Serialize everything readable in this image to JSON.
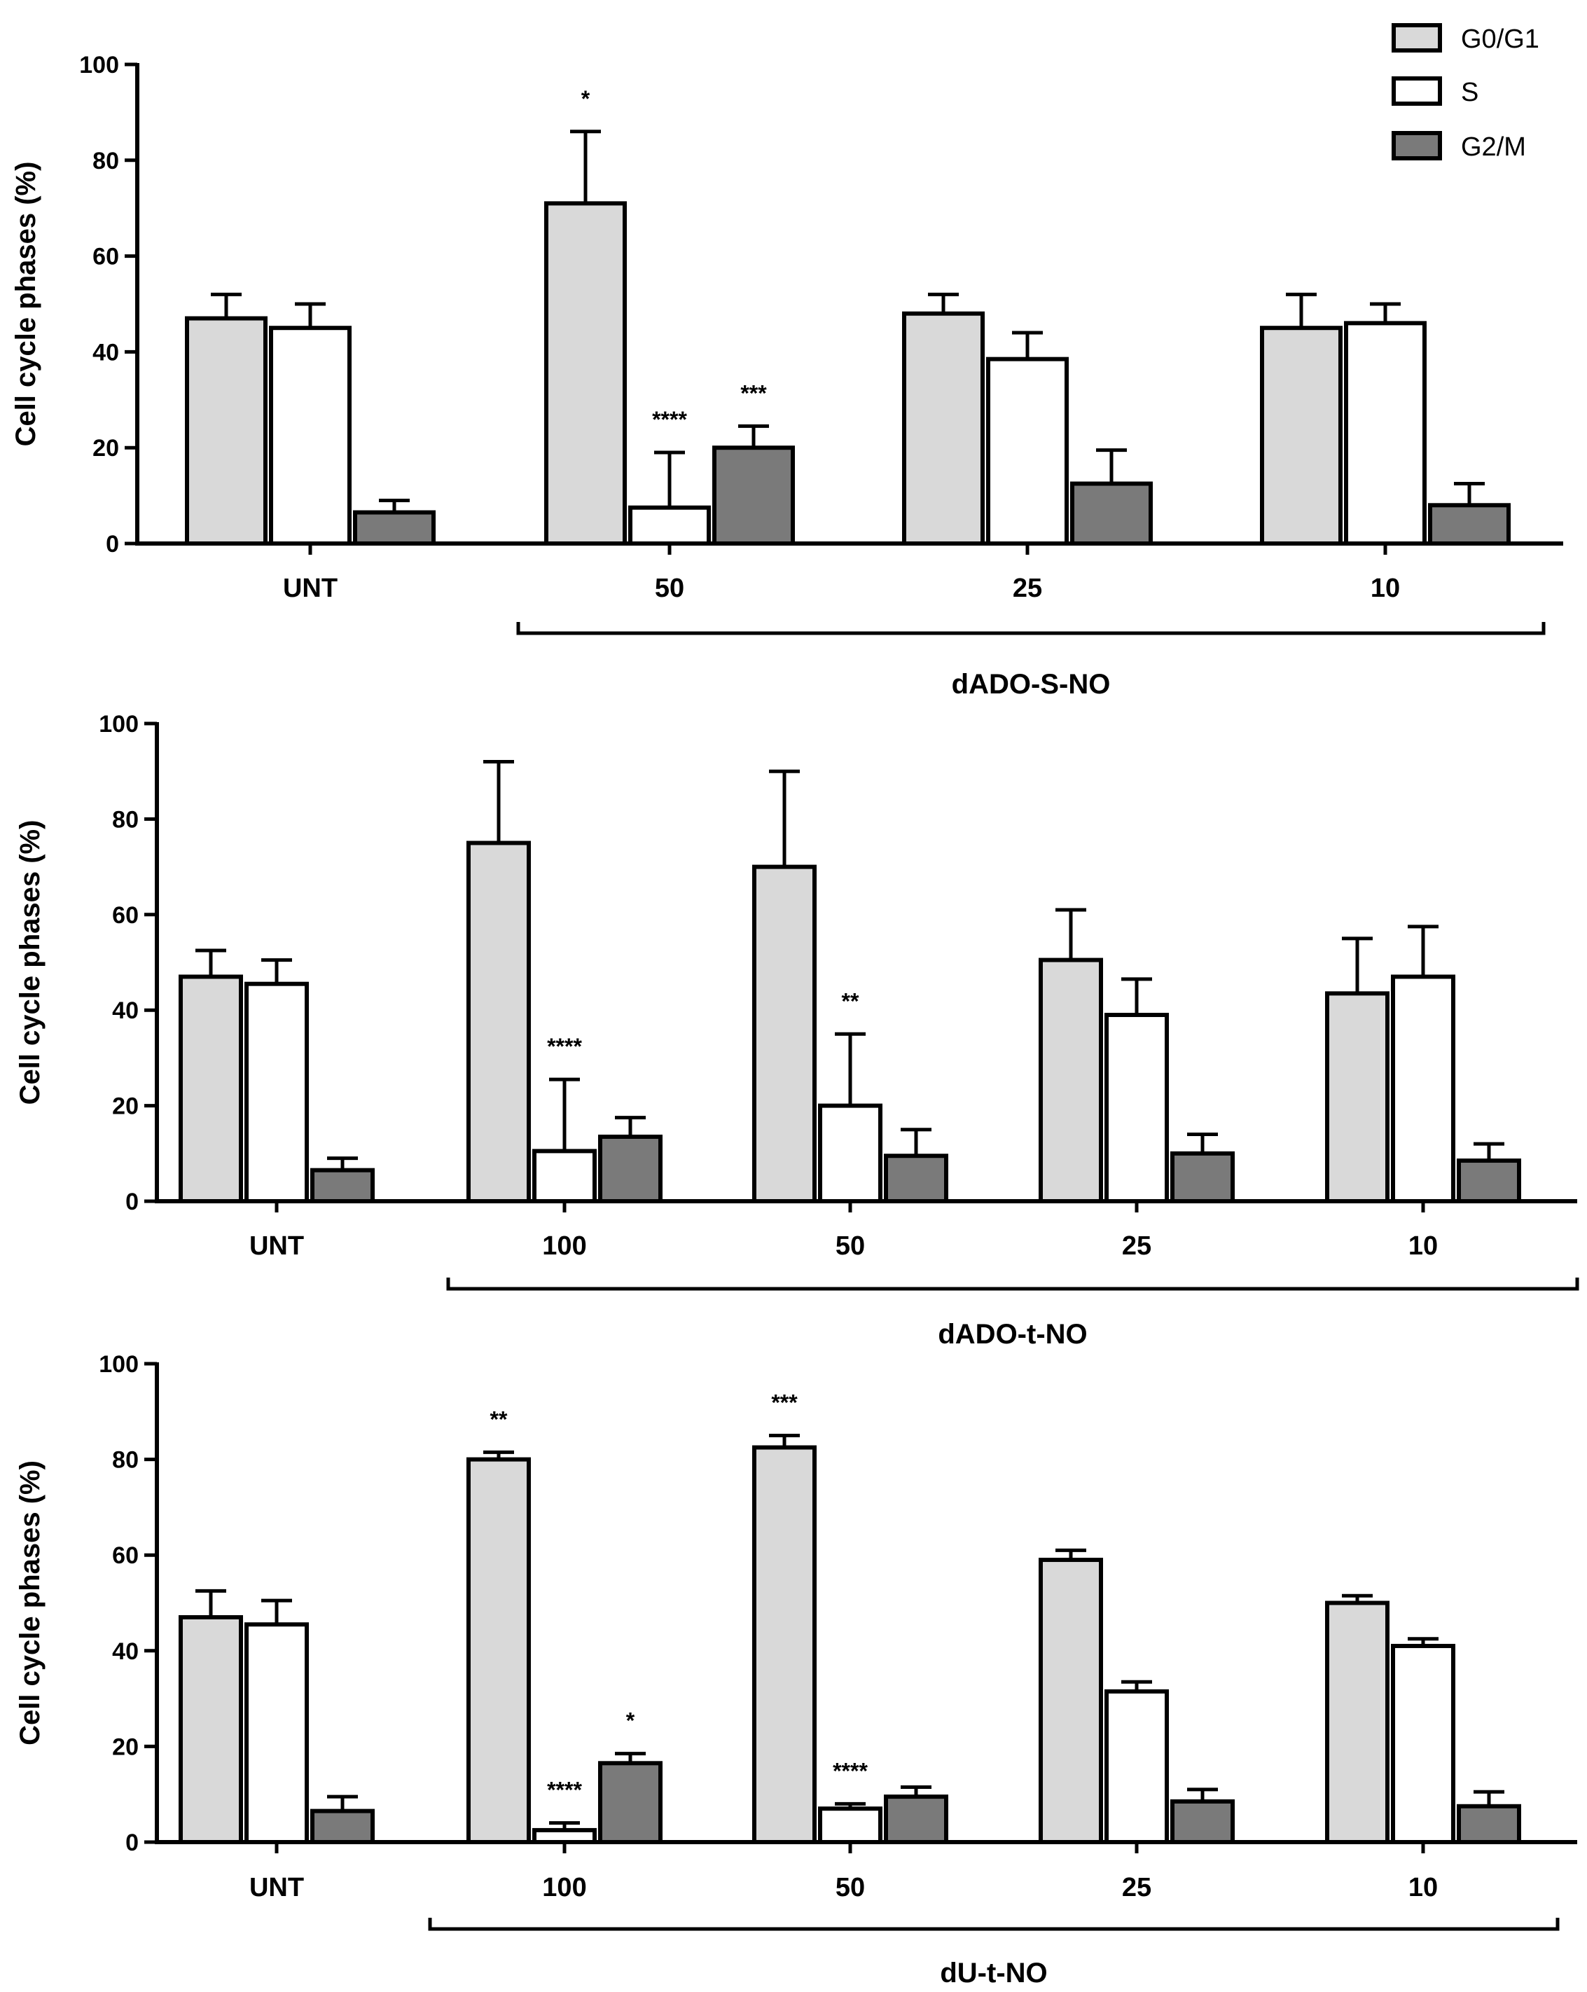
{
  "chart_data": [
    {
      "type": "bar",
      "title": "",
      "ylabel": "Cell cycle phases (%)",
      "xlabel": "",
      "group_label": "dADO-S-NO",
      "ylim": [
        0,
        100
      ],
      "yticks": [
        "0",
        "20",
        "40",
        "60",
        "80",
        "100"
      ],
      "categories": [
        "UNT",
        "50",
        "25",
        "10"
      ],
      "series": [
        {
          "name": "G0/G1",
          "color": "#d9d9d9",
          "values": [
            47,
            71,
            48,
            45
          ],
          "errors": [
            5,
            15,
            4,
            7
          ],
          "stars": [
            "",
            "*",
            "",
            ""
          ]
        },
        {
          "name": "S",
          "color": "#ffffff",
          "values": [
            45,
            7.5,
            38.5,
            46
          ],
          "errors": [
            5,
            11.5,
            5.5,
            4
          ],
          "stars": [
            "",
            "****",
            "",
            ""
          ]
        },
        {
          "name": "G2/M",
          "color": "#7a7a7a",
          "values": [
            6.5,
            20,
            12.5,
            8
          ],
          "errors": [
            2.5,
            4.5,
            7,
            4.5
          ],
          "stars": [
            "",
            "***",
            "",
            ""
          ]
        }
      ]
    },
    {
      "type": "bar",
      "title": "",
      "ylabel": "Cell cycle phases (%)",
      "xlabel": "",
      "group_label": "dADO-t-NO",
      "ylim": [
        0,
        100
      ],
      "yticks": [
        "0",
        "20",
        "40",
        "60",
        "80",
        "100"
      ],
      "categories": [
        "UNT",
        "100",
        "50",
        "25",
        "10"
      ],
      "series": [
        {
          "name": "G0/G1",
          "color": "#d9d9d9",
          "values": [
            47,
            75,
            70,
            50.5,
            43.5
          ],
          "errors": [
            5.5,
            17,
            20,
            10.5,
            11.5
          ],
          "stars": [
            "",
            "",
            "",
            "",
            ""
          ]
        },
        {
          "name": "S",
          "color": "#ffffff",
          "values": [
            45.5,
            10.5,
            20,
            39,
            47
          ],
          "errors": [
            5,
            15,
            15,
            7.5,
            10.5
          ],
          "stars": [
            "",
            "****",
            "**",
            "",
            ""
          ]
        },
        {
          "name": "G2/M",
          "color": "#7a7a7a",
          "values": [
            6.5,
            13.5,
            9.5,
            10,
            8.5
          ],
          "errors": [
            2.5,
            4,
            5.5,
            4,
            3.5
          ],
          "stars": [
            "",
            "",
            "",
            "",
            ""
          ]
        }
      ]
    },
    {
      "type": "bar",
      "title": "",
      "ylabel": "Cell cycle phases (%)",
      "xlabel": "",
      "group_label": "dU-t-NO",
      "ylim": [
        0,
        100
      ],
      "yticks": [
        "0",
        "20",
        "40",
        "60",
        "80",
        "100"
      ],
      "categories": [
        "UNT",
        "100",
        "50",
        "25",
        "10"
      ],
      "series": [
        {
          "name": "G0/G1",
          "color": "#d9d9d9",
          "values": [
            47,
            80,
            82.5,
            59,
            50
          ],
          "errors": [
            5.5,
            1.5,
            2.5,
            2,
            1.5
          ],
          "stars": [
            "",
            "**",
            "***",
            "",
            ""
          ]
        },
        {
          "name": "S",
          "color": "#ffffff",
          "values": [
            45.5,
            2.5,
            7,
            31.5,
            41
          ],
          "errors": [
            5,
            1.5,
            1,
            2,
            1.5
          ],
          "stars": [
            "",
            "****",
            "****",
            "",
            ""
          ]
        },
        {
          "name": "G2/M",
          "color": "#7a7a7a",
          "values": [
            6.5,
            16.5,
            9.5,
            8.5,
            7.5
          ],
          "errors": [
            3,
            2,
            2,
            2.5,
            3
          ],
          "stars": [
            "",
            "*",
            "",
            "",
            ""
          ]
        }
      ]
    }
  ],
  "legend": {
    "items": [
      {
        "label": "G0/G1",
        "color": "#d9d9d9"
      },
      {
        "label": "S",
        "color": "#ffffff"
      },
      {
        "label": "G2/M",
        "color": "#7a7a7a"
      }
    ]
  }
}
